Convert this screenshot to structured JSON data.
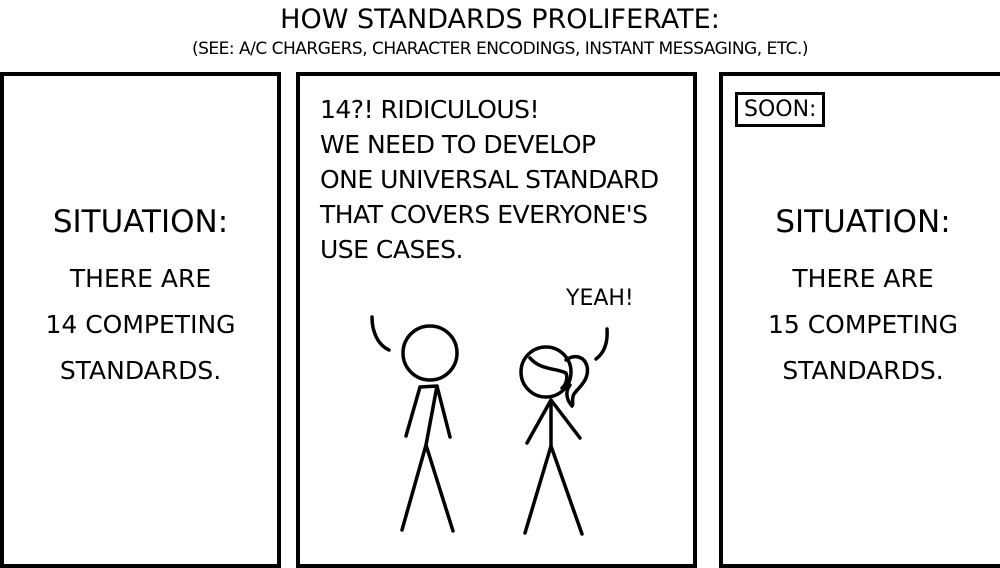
{
  "header": {
    "title": "HOW STANDARDS PROLIFERATE:",
    "subtitle": "(SEE: A/C CHARGERS, CHARACTER ENCODINGS, INSTANT MESSAGING, ETC.)"
  },
  "panels": [
    {
      "heading": "SITUATION:",
      "lines": [
        "THERE ARE",
        "14 COMPETING",
        "STANDARDS."
      ]
    },
    {
      "speech": [
        "14?! RIDICULOUS!",
        "WE NEED TO DEVELOP",
        "ONE UNIVERSAL STANDARD",
        "THAT COVERS EVERYONE'S",
        "USE CASES."
      ],
      "reply": "YEAH!"
    },
    {
      "caption": "SOON:",
      "heading": "SITUATION:",
      "lines": [
        "THERE ARE",
        "15 COMPETING",
        "STANDARDS."
      ]
    }
  ]
}
